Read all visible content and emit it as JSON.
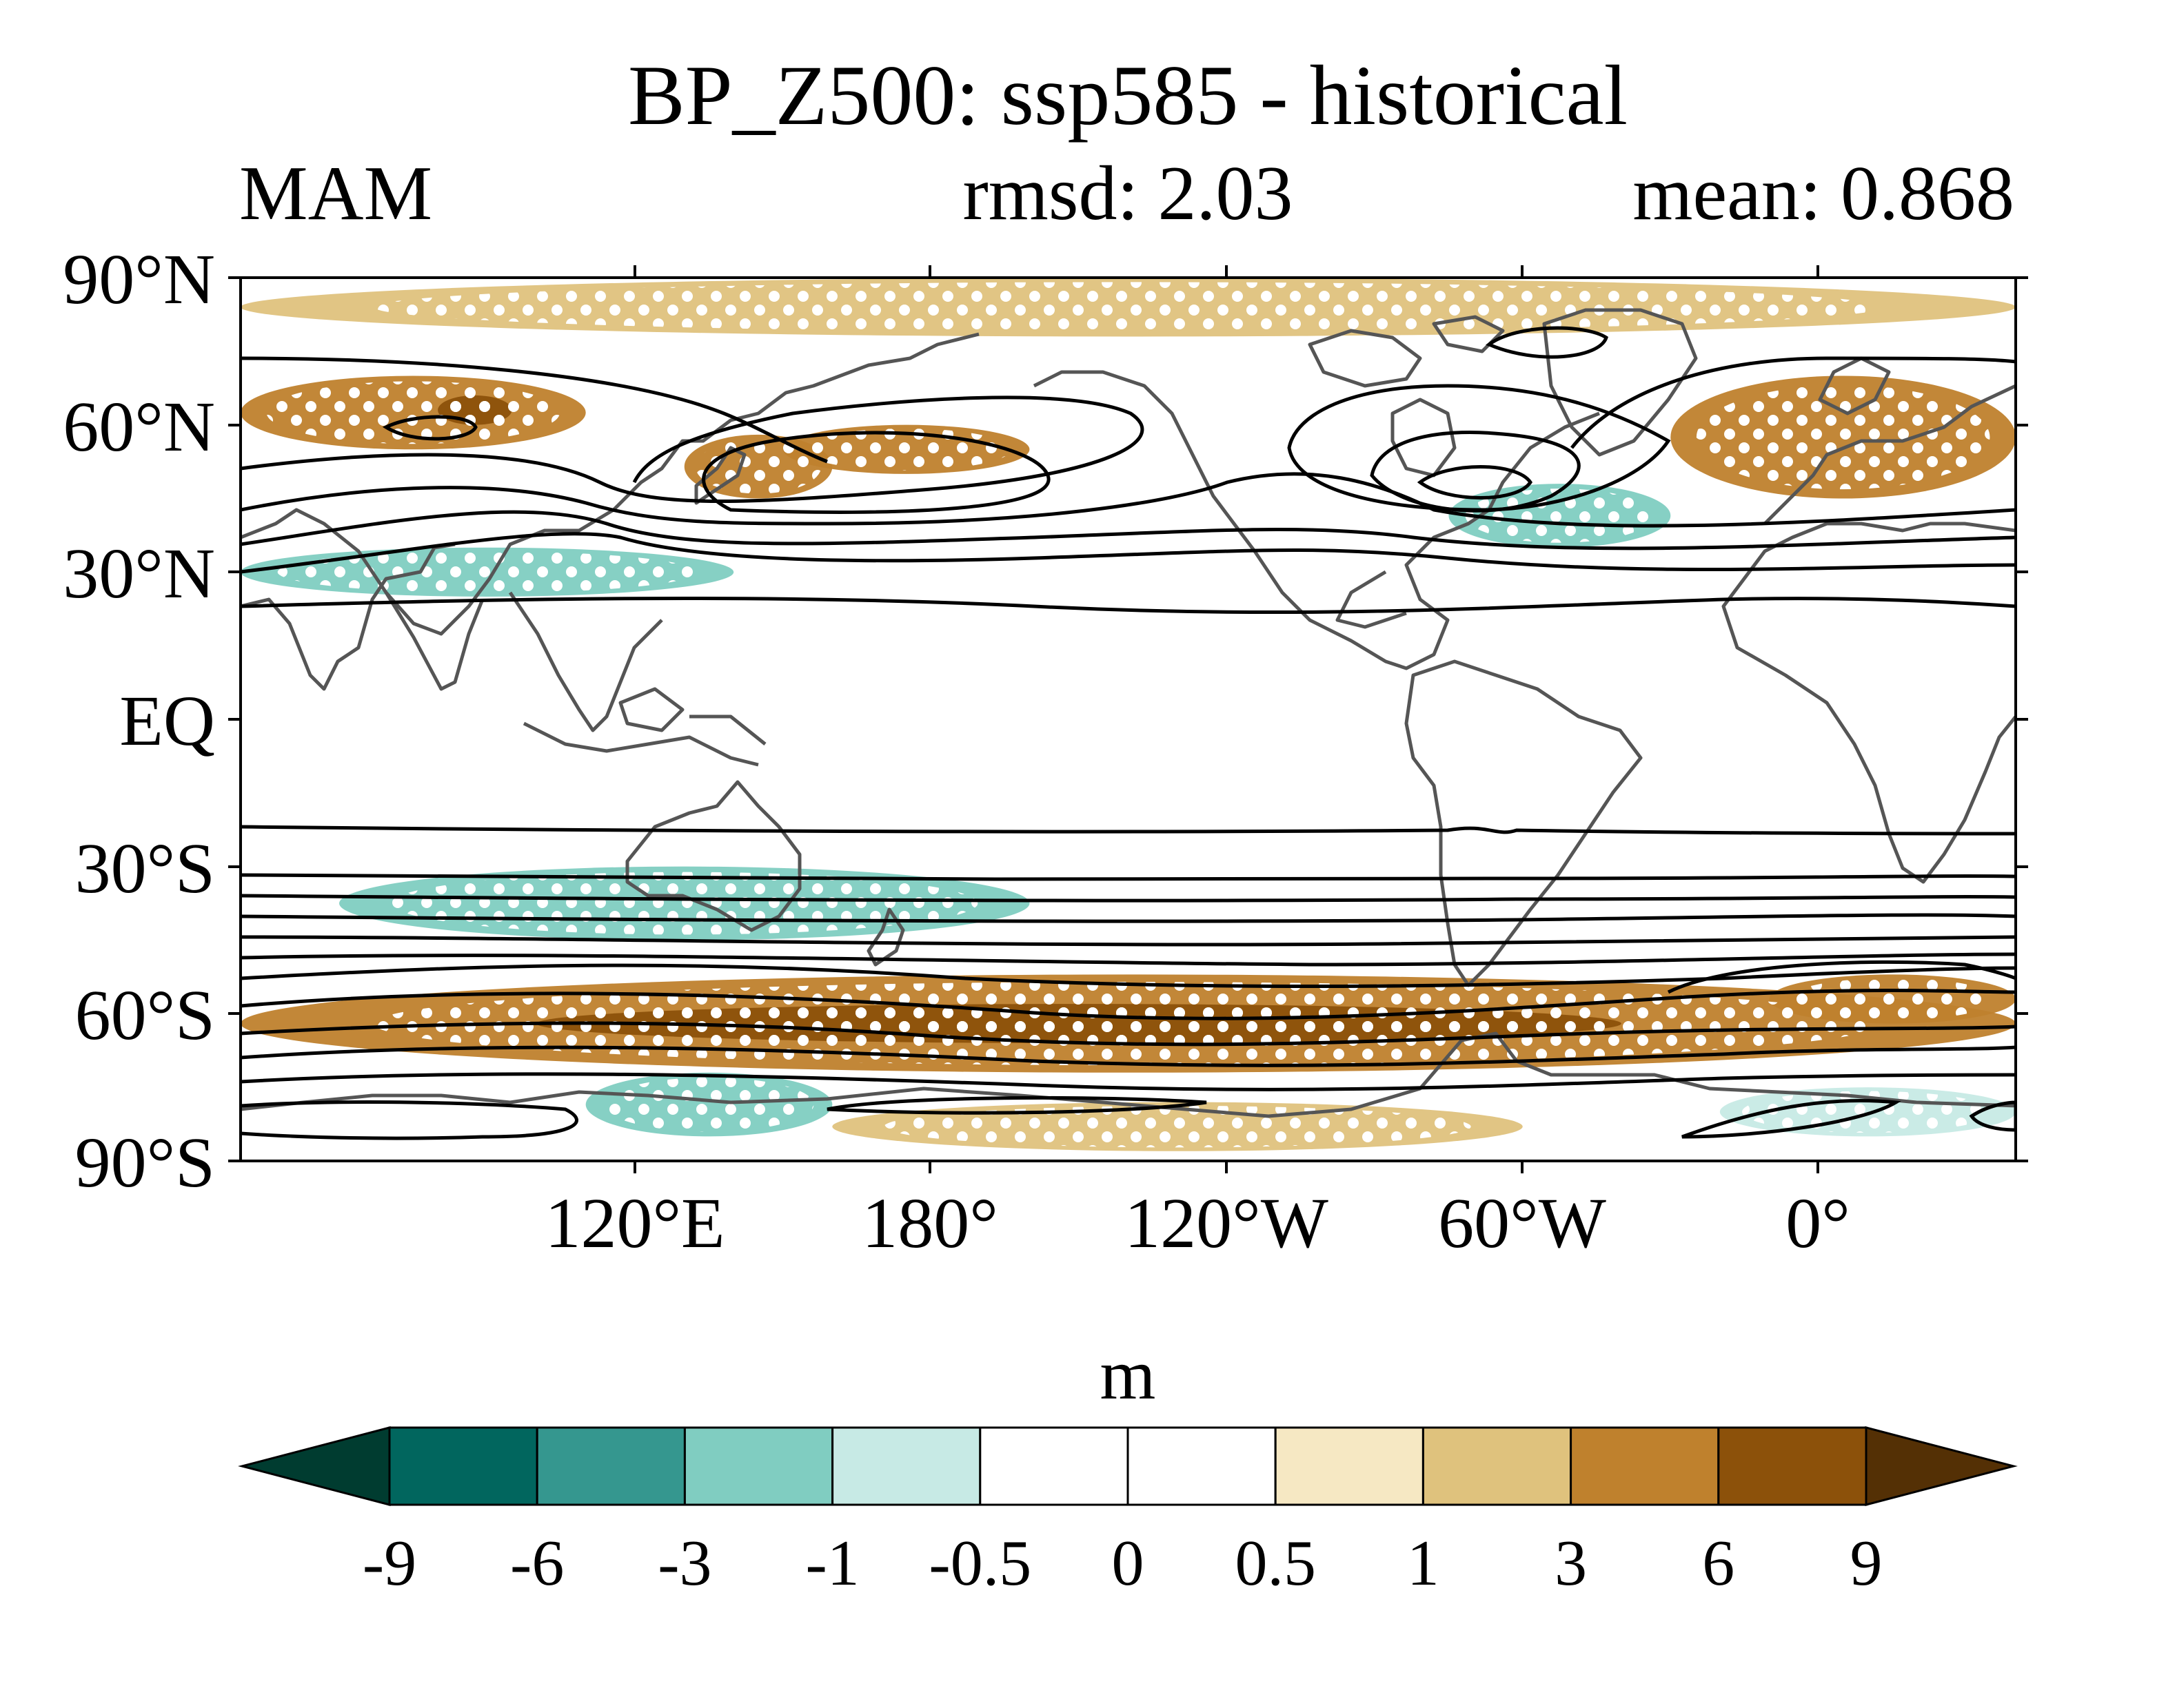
{
  "title": "BP_Z500: ssp585 - historical",
  "season": "MAM",
  "rmsd_text": "rmsd: 2.03",
  "mean_text": "mean: 0.868",
  "colorbar": {
    "unit": "m",
    "tick_labels": [
      "-9",
      "-6",
      "-3",
      "-1",
      "-0.5",
      "0",
      "0.5",
      "1",
      "3",
      "6",
      "9"
    ],
    "bins": [
      {
        "from": -9,
        "to": -6,
        "color": "#01665e"
      },
      {
        "from": -6,
        "to": -3,
        "color": "#35978f"
      },
      {
        "from": -3,
        "to": -1,
        "color": "#80cdc1"
      },
      {
        "from": -1,
        "to": -0.5,
        "color": "#c7eae5"
      },
      {
        "from": -0.5,
        "to": 0,
        "color": "#ffffff"
      },
      {
        "from": 0,
        "to": 0.5,
        "color": "#ffffff"
      },
      {
        "from": 0.5,
        "to": 1,
        "color": "#f6e8c3"
      },
      {
        "from": 1,
        "to": 3,
        "color": "#dfc27d"
      },
      {
        "from": 3,
        "to": 6,
        "color": "#bf812d"
      },
      {
        "from": 6,
        "to": 9,
        "color": "#8c510a"
      }
    ],
    "under_color": "#003c30",
    "over_color": "#543005"
  },
  "map": {
    "lat_labels": [
      "90°N",
      "60°N",
      "30°N",
      "EQ",
      "30°S",
      "60°S",
      "90°S"
    ],
    "lon_labels": [
      "120°E",
      "180°",
      "120°W",
      "60°W",
      "0°"
    ],
    "lat_range": [
      -90,
      90
    ],
    "lon_range": [
      40,
      400
    ],
    "stippling": "white dots mark significant regions",
    "contours": "black climatology contour lines",
    "coastline_color": "#555555"
  },
  "chart_data": {
    "type": "heatmap",
    "title": "BP_Z500: ssp585 - historical",
    "subtitle_left": "MAM",
    "subtitle_center": "rmsd: 2.03",
    "subtitle_right": "mean: 0.868",
    "unit": "m",
    "levels": [
      -9,
      -6,
      -3,
      -1,
      -0.5,
      0,
      0.5,
      1,
      3,
      6,
      9
    ],
    "anomaly_regions": [
      {
        "name": "",
        "lon": [
          40,
          110
        ],
        "lat": [
          55,
          70
        ],
        "value": 5
      },
      {
        "name": "",
        "lon": [
          80,
          95
        ],
        "lat": [
          60,
          66
        ],
        "value": 8
      },
      {
        "name": "",
        "lon": [
          130,
          160
        ],
        "lat": [
          45,
          58
        ],
        "value": 4
      },
      {
        "name": "",
        "lon": [
          150,
          200
        ],
        "lat": [
          50,
          60
        ],
        "value": 4
      },
      {
        "name": "",
        "lon": [
          40,
          140
        ],
        "lat": [
          25,
          35
        ],
        "value": -2
      },
      {
        "name": "",
        "lon": [
          285,
          330
        ],
        "lat": [
          35,
          48
        ],
        "value": -2
      },
      {
        "name": "",
        "lon": [
          330,
          400
        ],
        "lat": [
          45,
          70
        ],
        "value": 3
      },
      {
        "name": "",
        "lon": [
          40,
          400
        ],
        "lat": [
          78,
          90
        ],
        "value": 1
      },
      {
        "name": "",
        "lon": [
          40,
          400
        ],
        "lat": [
          -72,
          -52
        ],
        "value": 5
      },
      {
        "name": "",
        "lon": [
          100,
          320
        ],
        "lat": [
          -66,
          -58
        ],
        "value": 7
      },
      {
        "name": "",
        "lon": [
          350,
          400
        ],
        "lat": [
          -62,
          -52
        ],
        "value": 4
      },
      {
        "name": "",
        "lon": [
          60,
          200
        ],
        "lat": [
          -45,
          -30
        ],
        "value": -2
      },
      {
        "name": "",
        "lon": [
          110,
          160
        ],
        "lat": [
          -85,
          -72
        ],
        "value": -3
      },
      {
        "name": "",
        "lon": [
          340,
          400
        ],
        "lat": [
          -85,
          -75
        ],
        "value": -1
      },
      {
        "name": "",
        "lon": [
          160,
          300
        ],
        "lat": [
          -88,
          -78
        ],
        "value": 1
      }
    ]
  }
}
